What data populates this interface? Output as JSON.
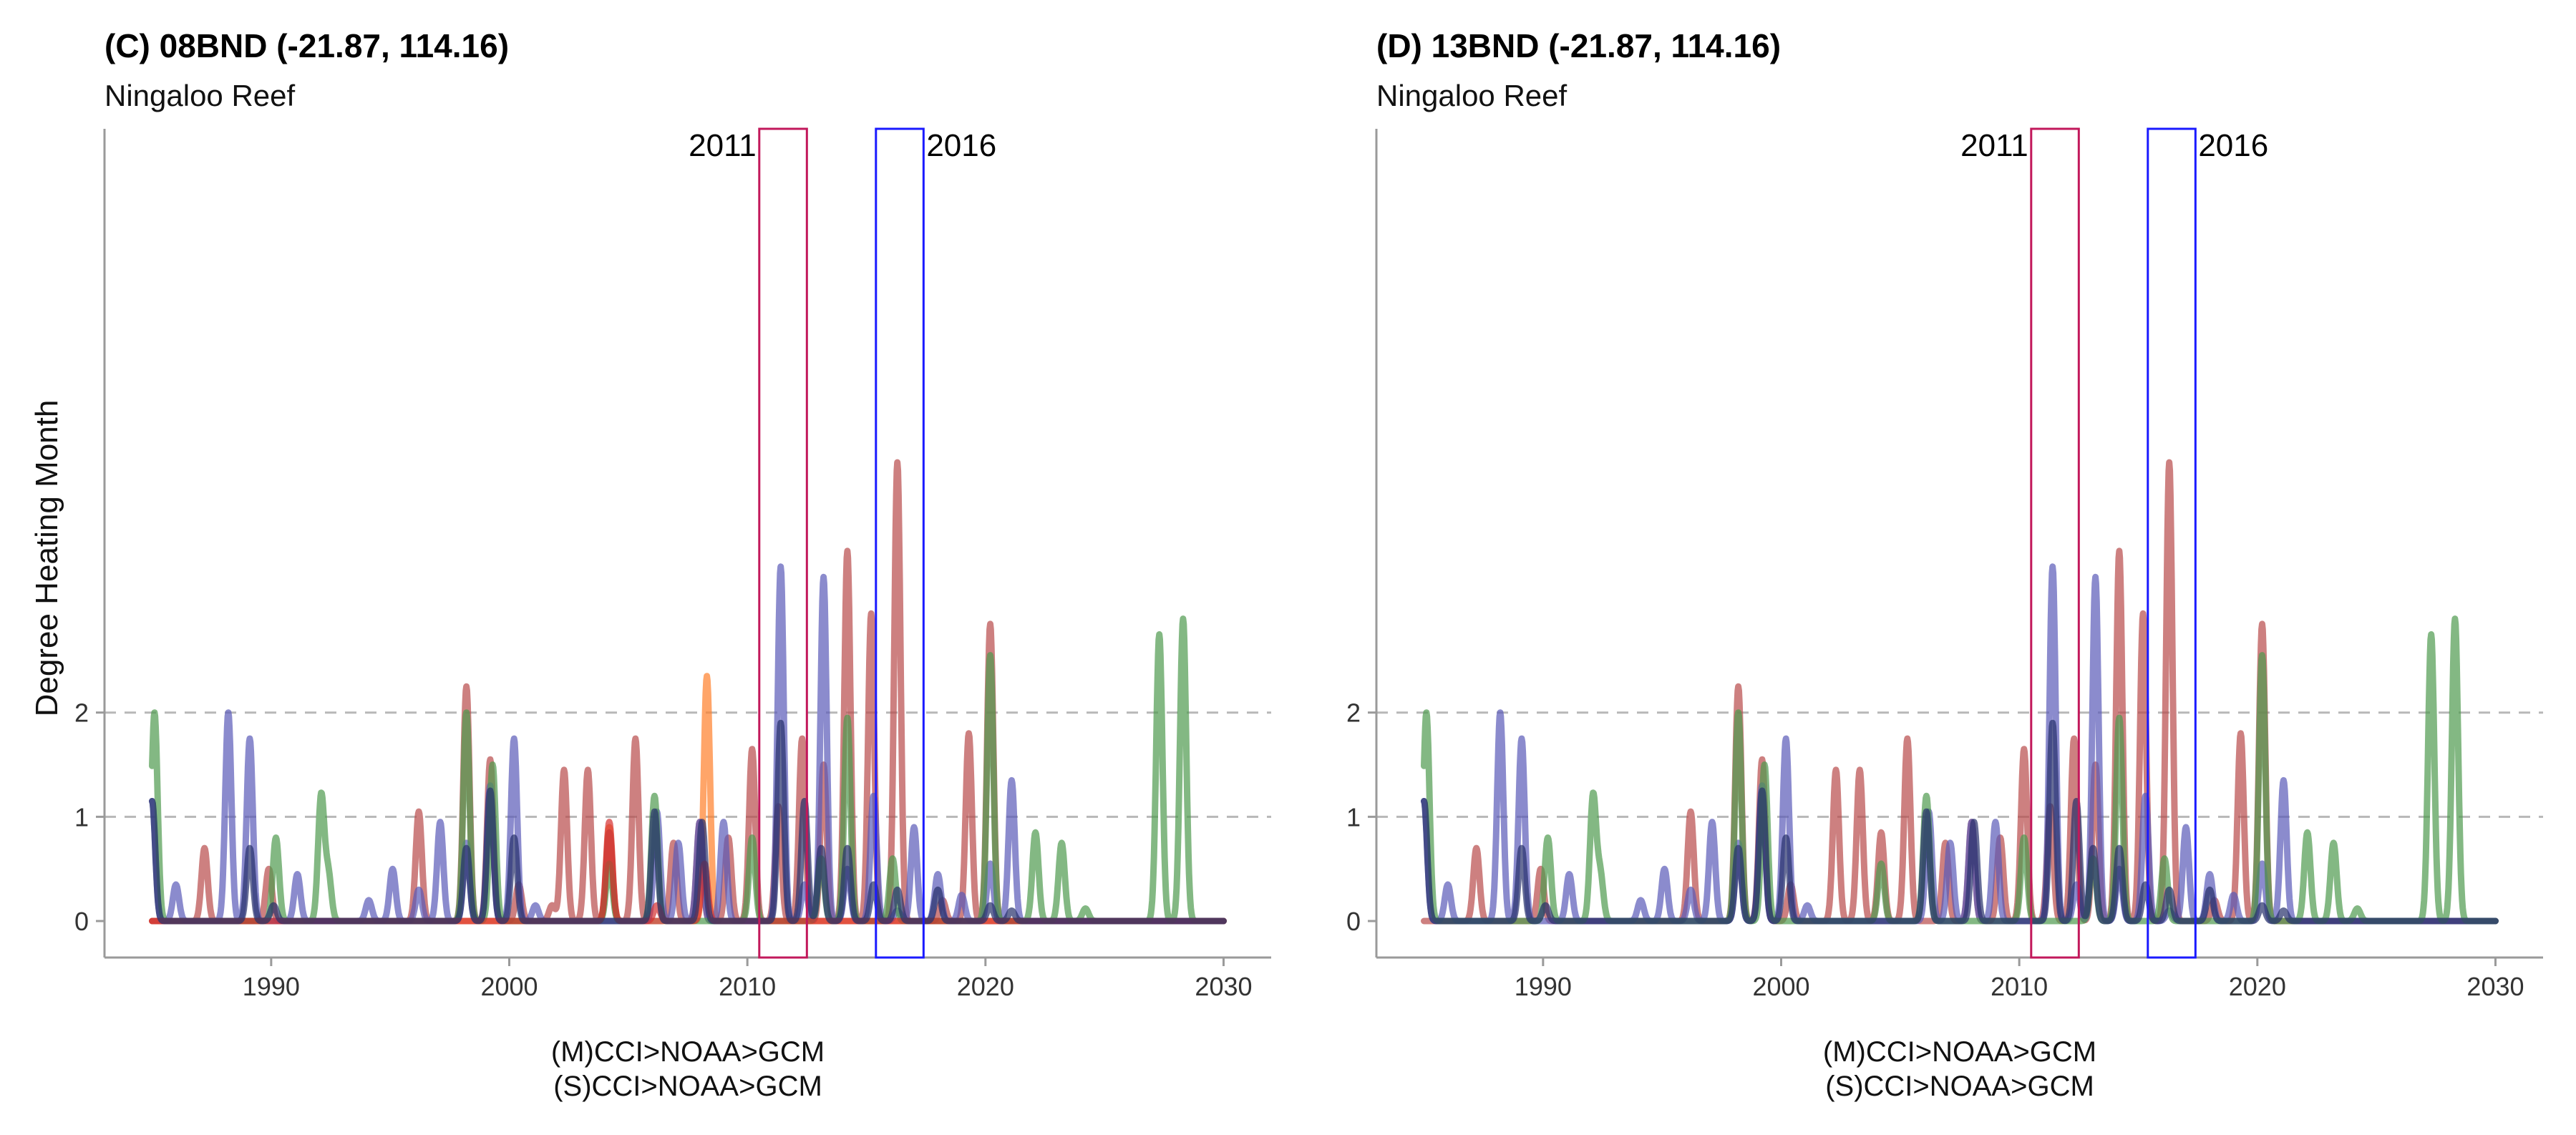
{
  "figure": {
    "y_axis_label": "Degree Heating Month"
  },
  "chart_data": [
    {
      "type": "line",
      "title": "(C) 08BND (-21.87, 114.16)",
      "subtitle": "Ningaloo Reef",
      "ylabel": "Degree Heating Month",
      "xlabel_lines": [
        "(M)CCI>NOAA>GCM",
        "(S)CCI>NOAA>GCM"
      ],
      "xlim": [
        1983,
        2032
      ],
      "ylim": [
        -0.35,
        7.6
      ],
      "x_ticks": [
        1990,
        2000,
        2010,
        2020,
        2030
      ],
      "y_ticks": [
        0,
        1,
        2
      ],
      "reference_lines_y": [
        1,
        2
      ],
      "event_windows": [
        {
          "label": "2011",
          "start": 2010.5,
          "end": 2012.5,
          "color": "#c2185b",
          "label_side": "left"
        },
        {
          "label": "2016",
          "start": 2015.4,
          "end": 2017.4,
          "color": "#1a1aff",
          "label_side": "right"
        }
      ],
      "series": [
        {
          "color": "#ff7f2a",
          "peaks": [
            [
              2004.2,
              0.9
            ],
            [
              2008.3,
              2.35
            ]
          ]
        },
        {
          "color": "#b84a4a",
          "peaks": [
            [
              1987.2,
              0.7
            ],
            [
              1989.9,
              0.5
            ],
            [
              1996.2,
              1.05
            ],
            [
              1998.2,
              2.25
            ],
            [
              1999.2,
              1.55
            ],
            [
              2000.4,
              0.35
            ],
            [
              2001.8,
              0.15
            ],
            [
              2002.3,
              1.45
            ],
            [
              2003.3,
              1.45
            ],
            [
              2004.2,
              0.85
            ],
            [
              2005.3,
              1.75
            ],
            [
              2006.9,
              0.75
            ],
            [
              2008.0,
              0.95
            ],
            [
              2009.2,
              0.8
            ],
            [
              2010.2,
              1.65
            ],
            [
              2011.3,
              1.1
            ],
            [
              2012.3,
              1.75
            ],
            [
              2013.2,
              1.5
            ],
            [
              2014.2,
              3.55
            ],
            [
              2015.2,
              2.95
            ],
            [
              2016.3,
              4.4
            ],
            [
              2018.2,
              0.2
            ],
            [
              2019.3,
              1.8
            ],
            [
              2020.2,
              2.85
            ]
          ]
        },
        {
          "color": "#5a5ab8",
          "peaks": [
            [
              1985.0,
              1.15
            ],
            [
              1986.0,
              0.35
            ],
            [
              1988.2,
              2.0
            ],
            [
              1989.1,
              1.75
            ],
            [
              1991.1,
              0.45
            ],
            [
              1994.1,
              0.2
            ],
            [
              1995.1,
              0.5
            ],
            [
              1996.2,
              0.3
            ],
            [
              1997.1,
              0.95
            ],
            [
              1998.2,
              0.75
            ],
            [
              1999.2,
              1.3
            ],
            [
              2000.2,
              1.75
            ],
            [
              2001.1,
              0.15
            ],
            [
              2006.2,
              1.05
            ],
            [
              2007.1,
              0.75
            ],
            [
              2008.0,
              0.95
            ],
            [
              2009.0,
              0.95
            ],
            [
              2011.4,
              3.4
            ],
            [
              2012.4,
              0.35
            ],
            [
              2013.2,
              3.3
            ],
            [
              2014.2,
              0.5
            ],
            [
              2015.3,
              1.2
            ],
            [
              2016.3,
              0.1
            ],
            [
              2017.0,
              0.9
            ],
            [
              2018.0,
              0.45
            ],
            [
              2019.0,
              0.25
            ],
            [
              2020.2,
              0.55
            ],
            [
              2021.1,
              1.35
            ]
          ]
        },
        {
          "color": "#4e9a4e",
          "peaks": [
            [
              1985.1,
              2.0
            ],
            [
              1990.2,
              0.8
            ],
            [
              1992.1,
              1.2
            ],
            [
              1992.4,
              0.45
            ],
            [
              1998.2,
              2.0
            ],
            [
              1999.3,
              1.5
            ],
            [
              2004.2,
              0.55
            ],
            [
              2006.1,
              1.2
            ],
            [
              2010.2,
              0.8
            ],
            [
              2013.1,
              0.6
            ],
            [
              2014.2,
              1.95
            ],
            [
              2016.1,
              0.6
            ],
            [
              2020.2,
              2.55
            ],
            [
              2022.1,
              0.85
            ],
            [
              2023.2,
              0.75
            ],
            [
              2024.2,
              0.12
            ],
            [
              2027.3,
              2.75
            ],
            [
              2028.3,
              2.9
            ]
          ]
        },
        {
          "color": "#d62f2f",
          "peaks": [
            [
              2004.2,
              0.95
            ],
            [
              2006.2,
              0.15
            ],
            [
              2008.2,
              0.55
            ]
          ]
        },
        {
          "color": "#26306b",
          "peaks": [
            [
              1985.0,
              1.15
            ],
            [
              1989.1,
              0.7
            ],
            [
              1990.1,
              0.15
            ],
            [
              1998.2,
              0.7
            ],
            [
              1999.2,
              1.25
            ],
            [
              2000.2,
              0.8
            ],
            [
              2006.1,
              1.05
            ],
            [
              2008.1,
              0.95
            ],
            [
              2011.4,
              1.9
            ],
            [
              2012.4,
              1.15
            ],
            [
              2013.1,
              0.7
            ],
            [
              2014.2,
              0.7
            ],
            [
              2015.3,
              0.35
            ],
            [
              2016.3,
              0.3
            ],
            [
              2018.0,
              0.3
            ],
            [
              2020.2,
              0.15
            ],
            [
              2021.1,
              0.1
            ]
          ]
        }
      ]
    },
    {
      "type": "line",
      "title": "(D) 13BND (-21.87, 114.16)",
      "subtitle": "Ningaloo Reef",
      "ylabel": "",
      "xlabel_lines": [
        "(M)CCI>NOAA>GCM",
        "(S)CCI>NOAA>GCM"
      ],
      "xlim": [
        1983,
        2032
      ],
      "ylim": [
        -0.35,
        7.6
      ],
      "x_ticks": [
        1990,
        2000,
        2010,
        2020,
        2030
      ],
      "y_ticks": [
        0,
        1,
        2
      ],
      "reference_lines_y": [
        1,
        2
      ],
      "event_windows": [
        {
          "label": "2011",
          "start": 2010.5,
          "end": 2012.5,
          "color": "#c2185b",
          "label_side": "left"
        },
        {
          "label": "2016",
          "start": 2015.4,
          "end": 2017.4,
          "color": "#1a1aff",
          "label_side": "right"
        }
      ],
      "series": [
        {
          "color": "#b84a4a",
          "peaks": [
            [
              1987.2,
              0.7
            ],
            [
              1989.9,
              0.5
            ],
            [
              1996.2,
              1.05
            ],
            [
              1998.2,
              2.25
            ],
            [
              1999.2,
              1.55
            ],
            [
              2000.4,
              0.35
            ],
            [
              2002.3,
              1.45
            ],
            [
              2003.3,
              1.45
            ],
            [
              2004.2,
              0.85
            ],
            [
              2005.3,
              1.75
            ],
            [
              2006.9,
              0.75
            ],
            [
              2008.0,
              0.95
            ],
            [
              2009.2,
              0.8
            ],
            [
              2010.2,
              1.65
            ],
            [
              2011.3,
              1.1
            ],
            [
              2012.3,
              1.75
            ],
            [
              2013.2,
              1.5
            ],
            [
              2014.2,
              3.55
            ],
            [
              2015.2,
              2.95
            ],
            [
              2016.3,
              4.4
            ],
            [
              2018.2,
              0.2
            ],
            [
              2019.3,
              1.8
            ],
            [
              2020.2,
              2.85
            ]
          ]
        },
        {
          "color": "#5a5ab8",
          "peaks": [
            [
              1985.0,
              1.15
            ],
            [
              1986.0,
              0.35
            ],
            [
              1988.2,
              2.0
            ],
            [
              1989.1,
              1.75
            ],
            [
              1991.1,
              0.45
            ],
            [
              1994.1,
              0.2
            ],
            [
              1995.1,
              0.5
            ],
            [
              1996.2,
              0.3
            ],
            [
              1997.1,
              0.95
            ],
            [
              1998.2,
              0.75
            ],
            [
              1999.2,
              1.3
            ],
            [
              2000.2,
              1.75
            ],
            [
              2001.1,
              0.15
            ],
            [
              2006.2,
              1.05
            ],
            [
              2007.1,
              0.75
            ],
            [
              2008.0,
              0.95
            ],
            [
              2009.0,
              0.95
            ],
            [
              2011.4,
              3.4
            ],
            [
              2012.4,
              0.35
            ],
            [
              2013.2,
              3.3
            ],
            [
              2014.2,
              0.5
            ],
            [
              2015.3,
              1.2
            ],
            [
              2016.3,
              0.1
            ],
            [
              2017.0,
              0.9
            ],
            [
              2018.0,
              0.45
            ],
            [
              2019.0,
              0.25
            ],
            [
              2020.2,
              0.55
            ],
            [
              2021.1,
              1.35
            ]
          ]
        },
        {
          "color": "#4e9a4e",
          "peaks": [
            [
              1985.1,
              2.0
            ],
            [
              1990.2,
              0.8
            ],
            [
              1992.1,
              1.2
            ],
            [
              1992.4,
              0.45
            ],
            [
              1998.2,
              2.0
            ],
            [
              1999.3,
              1.5
            ],
            [
              2004.2,
              0.55
            ],
            [
              2006.1,
              1.2
            ],
            [
              2010.2,
              0.8
            ],
            [
              2013.1,
              0.6
            ],
            [
              2014.2,
              1.95
            ],
            [
              2016.1,
              0.6
            ],
            [
              2020.2,
              2.55
            ],
            [
              2022.1,
              0.85
            ],
            [
              2023.2,
              0.75
            ],
            [
              2024.2,
              0.12
            ],
            [
              2027.3,
              2.75
            ],
            [
              2028.3,
              2.9
            ]
          ]
        },
        {
          "color": "#26306b",
          "peaks": [
            [
              1985.0,
              1.15
            ],
            [
              1989.1,
              0.7
            ],
            [
              1990.1,
              0.15
            ],
            [
              1998.2,
              0.7
            ],
            [
              1999.2,
              1.25
            ],
            [
              2000.2,
              0.8
            ],
            [
              2006.1,
              1.05
            ],
            [
              2008.1,
              0.95
            ],
            [
              2011.4,
              1.9
            ],
            [
              2012.4,
              1.15
            ],
            [
              2013.1,
              0.7
            ],
            [
              2014.2,
              0.7
            ],
            [
              2015.3,
              0.35
            ],
            [
              2016.3,
              0.3
            ],
            [
              2018.0,
              0.3
            ],
            [
              2020.2,
              0.15
            ],
            [
              2021.1,
              0.1
            ]
          ]
        }
      ]
    }
  ]
}
